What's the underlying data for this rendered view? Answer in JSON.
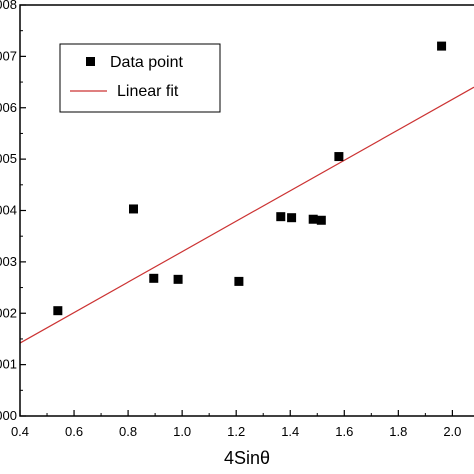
{
  "chart_data": {
    "type": "scatter",
    "title": "",
    "xlabel": "4Sinθ",
    "ylabel": "",
    "xlim": [
      0.4,
      2.08
    ],
    "ylim": [
      0.0,
      0.008
    ],
    "grid": false,
    "legend_position": "top-left",
    "x_ticks": [
      0.4,
      0.6,
      0.8,
      1.0,
      1.2,
      1.4,
      1.6,
      1.8,
      2.0
    ],
    "x_tick_labels": [
      "0.4",
      "0.6",
      "0.8",
      "1.0",
      "1.2",
      "1.4",
      "1.6",
      "1.8",
      "2.0"
    ],
    "y_ticks": [
      0.0,
      0.001,
      0.002,
      0.003,
      0.004,
      0.005,
      0.006,
      0.007,
      0.008
    ],
    "y_tick_labels": [
      "000",
      "001",
      "002",
      "003",
      "004",
      "005",
      "006",
      "007",
      "008"
    ],
    "series": [
      {
        "name": "Data point",
        "kind": "scatter",
        "marker": "square",
        "color": "#000000",
        "x": [
          0.54,
          0.82,
          0.895,
          0.985,
          1.21,
          1.365,
          1.405,
          1.485,
          1.515,
          1.58,
          1.96
        ],
        "y": [
          0.00205,
          0.00403,
          0.00268,
          0.00266,
          0.00262,
          0.00388,
          0.00386,
          0.00383,
          0.00381,
          0.00505,
          0.0072
        ]
      },
      {
        "name": "Linear fit",
        "kind": "line",
        "color": "#cc3333",
        "x": [
          0.4,
          2.08
        ],
        "y": [
          0.00142,
          0.0064
        ]
      }
    ]
  }
}
